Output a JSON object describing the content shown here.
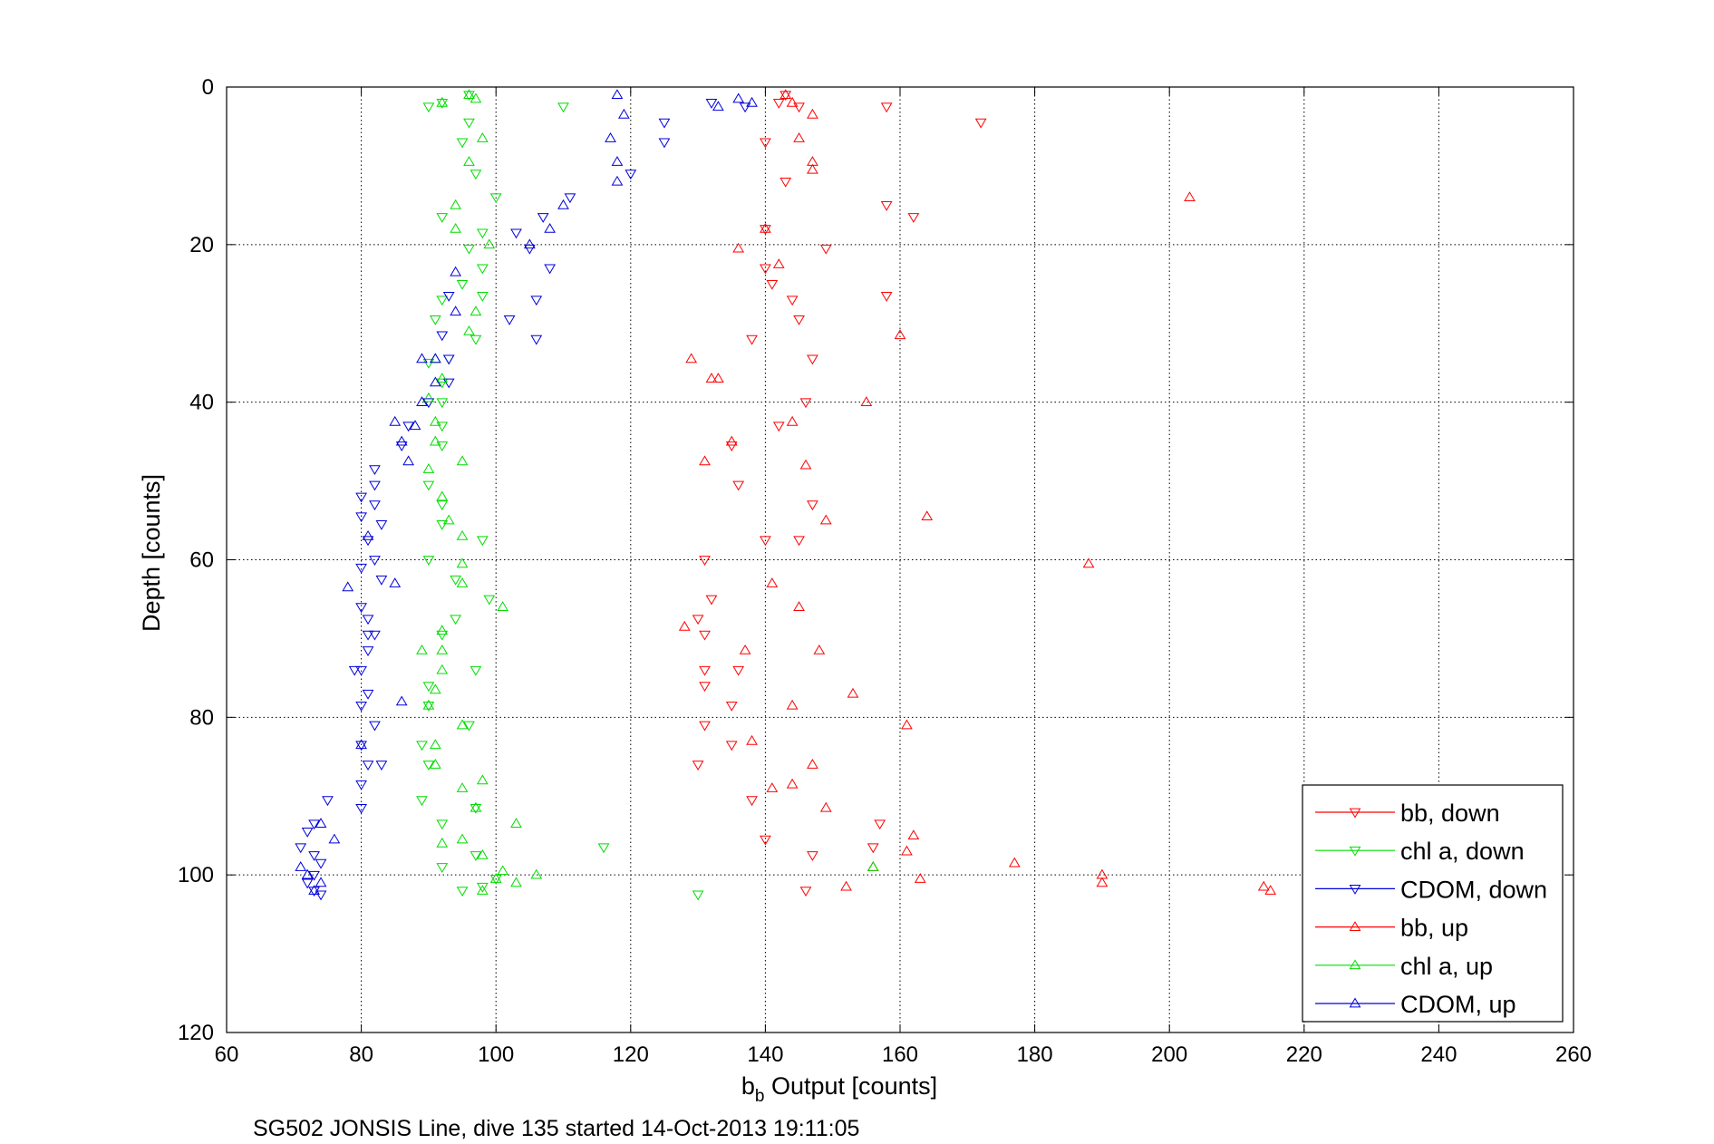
{
  "caption": "SG502 JONSIS Line, dive 135 started 14-Oct-2013 19:11:05",
  "chart_data": {
    "type": "scatter",
    "title": "",
    "xlabel_main": "b",
    "xlabel_sub": "b",
    "xlabel_rest": " Output [counts]",
    "ylabel": "Depth [counts]",
    "xlim": [
      60,
      260
    ],
    "ylim": [
      0,
      120
    ],
    "y_reversed": true,
    "grid": true,
    "x_ticks": [
      "60",
      "80",
      "100",
      "120",
      "140",
      "160",
      "180",
      "200",
      "220",
      "240",
      "260"
    ],
    "y_ticks": [
      "0",
      "20",
      "40",
      "60",
      "80",
      "100",
      "120"
    ],
    "legend_position": "bottom-right",
    "series": [
      {
        "name": "bb, down",
        "color": "#ff0000",
        "marker": "triangle-down",
        "points": [
          [
            143,
            1
          ],
          [
            142,
            2
          ],
          [
            145,
            2.5
          ],
          [
            158,
            2.5
          ],
          [
            172,
            4.5
          ],
          [
            140,
            7
          ],
          [
            143,
            12
          ],
          [
            158,
            15
          ],
          [
            162,
            16.5
          ],
          [
            140,
            18
          ],
          [
            149,
            20.5
          ],
          [
            140,
            23
          ],
          [
            141,
            25
          ],
          [
            158,
            26.5
          ],
          [
            144,
            27
          ],
          [
            145,
            29.5
          ],
          [
            138,
            32
          ],
          [
            147,
            34.5
          ],
          [
            146,
            40
          ],
          [
            142,
            43
          ],
          [
            135,
            45.5
          ],
          [
            136,
            50.5
          ],
          [
            147,
            53
          ],
          [
            140,
            57.5
          ],
          [
            145,
            57.5
          ],
          [
            131,
            60
          ],
          [
            132,
            65
          ],
          [
            130,
            67.5
          ],
          [
            131,
            69.5
          ],
          [
            131,
            74
          ],
          [
            136,
            74
          ],
          [
            131,
            76
          ],
          [
            135,
            78.5
          ],
          [
            131,
            81
          ],
          [
            135,
            83.5
          ],
          [
            130,
            86
          ],
          [
            138,
            90.5
          ],
          [
            157,
            93.5
          ],
          [
            140,
            95.5
          ],
          [
            156,
            96.5
          ],
          [
            147,
            97.5
          ],
          [
            146,
            102
          ]
        ]
      },
      {
        "name": "chl a, down",
        "color": "#00dd00",
        "marker": "triangle-down",
        "points": [
          [
            96,
            1
          ],
          [
            92,
            2
          ],
          [
            90,
            2.5
          ],
          [
            110,
            2.5
          ],
          [
            96,
            4.5
          ],
          [
            95,
            7
          ],
          [
            97,
            11
          ],
          [
            100,
            14
          ],
          [
            92,
            16.5
          ],
          [
            98,
            18.5
          ],
          [
            96,
            20.5
          ],
          [
            98,
            23
          ],
          [
            95,
            25
          ],
          [
            98,
            26.5
          ],
          [
            92,
            27
          ],
          [
            91,
            29.5
          ],
          [
            97,
            32
          ],
          [
            93,
            34.5
          ],
          [
            90,
            35
          ],
          [
            92,
            37.5
          ],
          [
            92,
            40
          ],
          [
            92,
            43
          ],
          [
            92,
            45.5
          ],
          [
            90,
            50.5
          ],
          [
            92,
            53
          ],
          [
            92,
            55.5
          ],
          [
            98,
            57.5
          ],
          [
            90,
            60
          ],
          [
            94,
            62.5
          ],
          [
            99,
            65
          ],
          [
            94,
            67.5
          ],
          [
            92,
            69.5
          ],
          [
            97,
            74
          ],
          [
            90,
            76
          ],
          [
            90,
            78.5
          ],
          [
            96,
            81
          ],
          [
            89,
            83.5
          ],
          [
            90,
            86
          ],
          [
            89,
            90.5
          ],
          [
            97,
            91.5
          ],
          [
            92,
            93.5
          ],
          [
            116,
            96.5
          ],
          [
            97,
            97.5
          ],
          [
            92,
            99
          ],
          [
            100,
            100.5
          ],
          [
            98,
            101.5
          ],
          [
            95,
            102
          ],
          [
            130,
            102.5
          ]
        ]
      },
      {
        "name": "CDOM, down",
        "color": "#0000dd",
        "marker": "triangle-down",
        "points": [
          [
            132,
            2
          ],
          [
            137,
            2.5
          ],
          [
            125,
            4.5
          ],
          [
            125,
            7
          ],
          [
            120,
            11
          ],
          [
            111,
            14
          ],
          [
            107,
            16.5
          ],
          [
            103,
            18.5
          ],
          [
            105,
            20.5
          ],
          [
            108,
            23
          ],
          [
            93,
            26.5
          ],
          [
            106,
            27
          ],
          [
            102,
            29.5
          ],
          [
            106,
            32
          ],
          [
            92,
            31.5
          ],
          [
            93,
            34.5
          ],
          [
            93,
            37.5
          ],
          [
            90,
            40
          ],
          [
            87,
            43
          ],
          [
            86,
            45.5
          ],
          [
            82,
            48.5
          ],
          [
            82,
            50.5
          ],
          [
            80,
            52
          ],
          [
            82,
            53
          ],
          [
            83,
            55.5
          ],
          [
            80,
            54.5
          ],
          [
            81,
            57.5
          ],
          [
            82,
            60
          ],
          [
            80,
            61
          ],
          [
            83,
            62.5
          ],
          [
            80,
            66
          ],
          [
            81,
            67.5
          ],
          [
            81,
            69.5
          ],
          [
            82,
            69.5
          ],
          [
            81,
            71.5
          ],
          [
            80,
            74
          ],
          [
            79,
            74
          ],
          [
            81,
            77
          ],
          [
            80,
            78.5
          ],
          [
            82,
            81
          ],
          [
            80,
            83.5
          ],
          [
            81,
            86
          ],
          [
            83,
            86
          ],
          [
            80,
            88.5
          ],
          [
            80,
            91.5
          ],
          [
            75,
            90.5
          ],
          [
            73,
            93.5
          ],
          [
            72,
            94.5
          ],
          [
            71,
            96.5
          ],
          [
            73,
            97.5
          ],
          [
            74,
            98.5
          ],
          [
            73,
            100
          ],
          [
            72,
            101
          ],
          [
            73,
            102
          ],
          [
            74,
            102.5
          ]
        ]
      },
      {
        "name": "bb, up",
        "color": "#ff0000",
        "marker": "triangle-up",
        "points": [
          [
            143,
            1
          ],
          [
            144,
            2
          ],
          [
            147,
            3.5
          ],
          [
            145,
            6.5
          ],
          [
            147,
            9.5
          ],
          [
            147,
            10.5
          ],
          [
            203,
            14
          ],
          [
            140,
            18
          ],
          [
            136,
            20.5
          ],
          [
            142,
            22.5
          ],
          [
            160,
            31.5
          ],
          [
            129,
            34.5
          ],
          [
            132,
            37
          ],
          [
            133,
            37
          ],
          [
            155,
            40
          ],
          [
            144,
            42.5
          ],
          [
            135,
            45
          ],
          [
            131,
            47.5
          ],
          [
            146,
            48
          ],
          [
            164,
            54.5
          ],
          [
            149,
            55
          ],
          [
            188,
            60.5
          ],
          [
            141,
            63
          ],
          [
            145,
            66
          ],
          [
            128,
            68.5
          ],
          [
            148,
            71.5
          ],
          [
            137,
            71.5
          ],
          [
            153,
            77
          ],
          [
            144,
            78.5
          ],
          [
            161,
            81
          ],
          [
            138,
            83
          ],
          [
            147,
            86
          ],
          [
            144,
            88.5
          ],
          [
            141,
            89
          ],
          [
            149,
            91.5
          ],
          [
            162,
            95
          ],
          [
            161,
            97
          ],
          [
            177,
            98.5
          ],
          [
            156,
            99
          ],
          [
            190,
            100
          ],
          [
            163,
            100.5
          ],
          [
            190,
            101
          ],
          [
            214,
            101.5
          ],
          [
            215,
            102
          ],
          [
            152,
            101.5
          ]
        ]
      },
      {
        "name": "chl a, up",
        "color": "#00dd00",
        "marker": "triangle-up",
        "points": [
          [
            96,
            1
          ],
          [
            97,
            1.5
          ],
          [
            92,
            2
          ],
          [
            98,
            6.5
          ],
          [
            96,
            9.5
          ],
          [
            94,
            15
          ],
          [
            94,
            18
          ],
          [
            99,
            20
          ],
          [
            97,
            28.5
          ],
          [
            96,
            31
          ],
          [
            91,
            34.5
          ],
          [
            92,
            37
          ],
          [
            90,
            39.5
          ],
          [
            91,
            42.5
          ],
          [
            91,
            45
          ],
          [
            95,
            47.5
          ],
          [
            90,
            48.5
          ],
          [
            92,
            52
          ],
          [
            93,
            55
          ],
          [
            95,
            57
          ],
          [
            95,
            60.5
          ],
          [
            95,
            63
          ],
          [
            101,
            66
          ],
          [
            92,
            69
          ],
          [
            89,
            71.5
          ],
          [
            92,
            71.5
          ],
          [
            92,
            74
          ],
          [
            91,
            76.5
          ],
          [
            90,
            78.5
          ],
          [
            95,
            81
          ],
          [
            91,
            83.5
          ],
          [
            91,
            86
          ],
          [
            95,
            89
          ],
          [
            98,
            88
          ],
          [
            97,
            91.5
          ],
          [
            103,
            93.5
          ],
          [
            92,
            96
          ],
          [
            95,
            95.5
          ],
          [
            98,
            97.5
          ],
          [
            156,
            99
          ],
          [
            101,
            99.5
          ],
          [
            106,
            100
          ],
          [
            100,
            100.5
          ],
          [
            103,
            101
          ],
          [
            98,
            102
          ]
        ]
      },
      {
        "name": "CDOM, up",
        "color": "#0000dd",
        "marker": "triangle-up",
        "points": [
          [
            118,
            1
          ],
          [
            136,
            1.5
          ],
          [
            138,
            2
          ],
          [
            133,
            2.5
          ],
          [
            119,
            3.5
          ],
          [
            117,
            6.5
          ],
          [
            118,
            9.5
          ],
          [
            118,
            12
          ],
          [
            110,
            15
          ],
          [
            108,
            18
          ],
          [
            105,
            20
          ],
          [
            94,
            23.5
          ],
          [
            94,
            28.5
          ],
          [
            89,
            34.5
          ],
          [
            91,
            34.5
          ],
          [
            91,
            37.5
          ],
          [
            89,
            40
          ],
          [
            85,
            42.5
          ],
          [
            88,
            43
          ],
          [
            86,
            45
          ],
          [
            87,
            47.5
          ],
          [
            81,
            57
          ],
          [
            85,
            63
          ],
          [
            78,
            63.5
          ],
          [
            86,
            78
          ],
          [
            80,
            83.5
          ],
          [
            76,
            95.5
          ],
          [
            74,
            93.5
          ],
          [
            71,
            99
          ],
          [
            72,
            100
          ],
          [
            73,
            102
          ],
          [
            74,
            101
          ]
        ]
      }
    ]
  }
}
